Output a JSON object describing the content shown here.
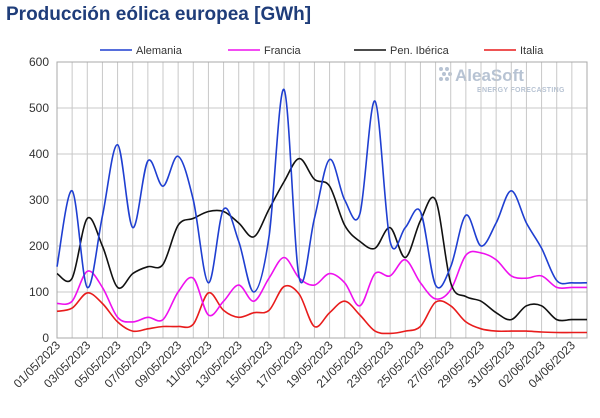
{
  "chart_data": {
    "type": "line",
    "title": "Producción eólica europea [GWh]",
    "ylim": [
      0,
      600
    ],
    "yticks": [
      0,
      100,
      200,
      300,
      400,
      500,
      600
    ],
    "grid": true,
    "legend_position": "top",
    "x": [
      "01/05/2023",
      "02/05/2023",
      "03/05/2023",
      "04/05/2023",
      "05/05/2023",
      "06/05/2023",
      "07/05/2023",
      "08/05/2023",
      "09/05/2023",
      "10/05/2023",
      "11/05/2023",
      "12/05/2023",
      "13/05/2023",
      "14/05/2023",
      "15/05/2023",
      "16/05/2023",
      "17/05/2023",
      "18/05/2023",
      "19/05/2023",
      "20/05/2023",
      "21/05/2023",
      "22/05/2023",
      "23/05/2023",
      "24/05/2023",
      "25/05/2023",
      "26/05/2023",
      "27/05/2023",
      "28/05/2023",
      "29/05/2023",
      "30/05/2023",
      "31/05/2023",
      "01/06/2023",
      "02/06/2023",
      "03/06/2023",
      "04/06/2023",
      "05/06/2023"
    ],
    "xtick_labels": [
      "01/05/2023",
      "03/05/2023",
      "05/05/2023",
      "07/05/2023",
      "09/05/2023",
      "11/05/2023",
      "13/05/2023",
      "15/05/2023",
      "17/05/2023",
      "19/05/2023",
      "21/05/2023",
      "23/05/2023",
      "25/05/2023",
      "27/05/2023",
      "29/05/2023",
      "31/05/2023",
      "02/06/2023",
      "04/06/2023"
    ],
    "series": [
      {
        "name": "Alemania",
        "color": "#1f3fd1",
        "values": [
          155,
          320,
          110,
          265,
          420,
          240,
          385,
          330,
          395,
          300,
          120,
          280,
          210,
          100,
          220,
          540,
          130,
          260,
          388,
          300,
          270,
          515,
          210,
          240,
          275,
          115,
          155,
          267,
          200,
          250,
          320,
          250,
          195,
          125,
          120,
          120
        ]
      },
      {
        "name": "Francia",
        "color": "#ee11ee",
        "values": [
          75,
          80,
          145,
          110,
          45,
          35,
          45,
          40,
          100,
          130,
          50,
          80,
          115,
          80,
          130,
          175,
          130,
          115,
          140,
          120,
          70,
          140,
          135,
          170,
          120,
          85,
          105,
          180,
          185,
          170,
          135,
          130,
          135,
          110,
          110,
          110
        ]
      },
      {
        "name": "Pen. Ibérica",
        "color": "#111111",
        "values": [
          140,
          130,
          260,
          200,
          110,
          140,
          155,
          160,
          245,
          260,
          275,
          275,
          250,
          220,
          280,
          340,
          390,
          345,
          330,
          245,
          210,
          195,
          240,
          175,
          255,
          300,
          120,
          90,
          80,
          55,
          40,
          70,
          70,
          40,
          40,
          40
        ]
      },
      {
        "name": "Italia",
        "color": "#e81c1c",
        "values": [
          58,
          65,
          98,
          75,
          35,
          15,
          20,
          25,
          25,
          30,
          98,
          60,
          45,
          55,
          60,
          112,
          95,
          25,
          55,
          80,
          50,
          15,
          10,
          15,
          25,
          78,
          70,
          35,
          20,
          15,
          15,
          15,
          13,
          12,
          12,
          12
        ]
      }
    ]
  },
  "logo": {
    "name": "AleaSoft",
    "tagline": "ENERGY FORECASTING"
  }
}
